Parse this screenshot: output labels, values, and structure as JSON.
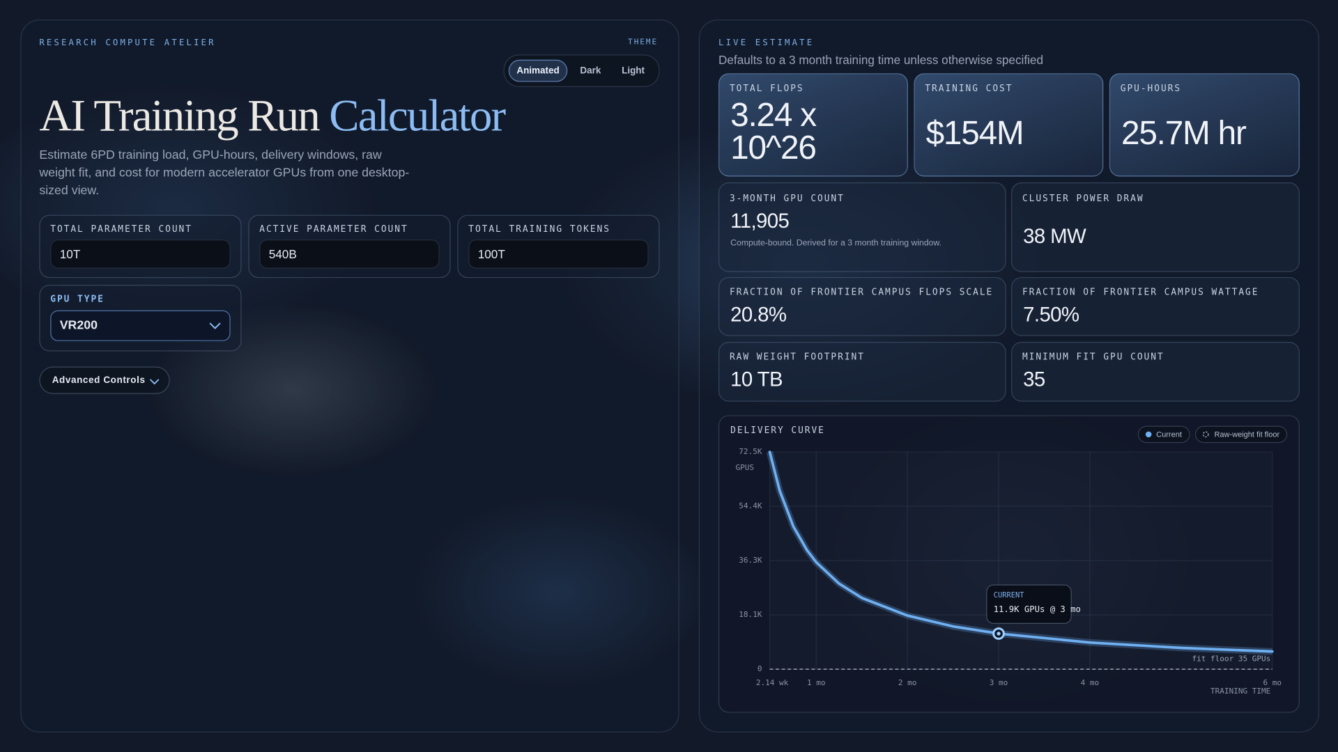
{
  "left": {
    "eyebrow": "RESEARCH COMPUTE ATELIER",
    "theme": {
      "label": "THEME",
      "options": [
        "Animated",
        "Dark",
        "Light"
      ],
      "active": 0
    },
    "title_main": "AI Training Run",
    "title_accent": "Calculator",
    "description": "Estimate 6PD training load, GPU-hours, delivery windows, raw weight fit, and cost for modern accelerator GPUs from one desktop-sized view.",
    "inputs": [
      {
        "label": "TOTAL PARAMETER COUNT",
        "value": "10T"
      },
      {
        "label": "ACTIVE PARAMETER COUNT",
        "value": "540B"
      },
      {
        "label": "TOTAL TRAINING TOKENS",
        "value": "100T"
      }
    ],
    "gpu_type": {
      "label": "GPU TYPE",
      "value": "VR200"
    },
    "advanced": "Advanced Controls"
  },
  "right": {
    "eyebrow": "LIVE ESTIMATE",
    "note": "Defaults to a 3 month training time unless otherwise specified",
    "headline": [
      {
        "label": "TOTAL FLOPS",
        "value": "3.24 x 10^26"
      },
      {
        "label": "TRAINING COST",
        "value": "$154M"
      },
      {
        "label": "GPU-HOURS",
        "value": "25.7M hr"
      }
    ],
    "gpu_count": {
      "label": "3-MONTH GPU COUNT",
      "value": "11,905",
      "note": "Compute-bound. Derived for a 3 month training window."
    },
    "power": {
      "label": "CLUSTER POWER DRAW",
      "value": "38 MW"
    },
    "metrics": [
      {
        "label": "FRACTION OF FRONTIER CAMPUS FLOPS SCALE",
        "value": "20.8%"
      },
      {
        "label": "FRACTION OF FRONTIER CAMPUS WATTAGE",
        "value": "7.50%"
      },
      {
        "label": "RAW WEIGHT FOOTPRINT",
        "value": "10 TB"
      },
      {
        "label": "MINIMUM FIT GPU COUNT",
        "value": "35"
      }
    ]
  },
  "chart_data": {
    "type": "line",
    "title": "DELIVERY CURVE",
    "y_label": "GPUS",
    "x_label": "TRAINING TIME",
    "x": [
      0.49,
      0.6,
      0.75,
      0.9,
      1,
      1.25,
      1.5,
      2,
      2.5,
      3,
      4,
      5,
      6
    ],
    "series": [
      {
        "name": "Current",
        "color": "#6fb0f2",
        "values": [
          72500,
          59500,
          47600,
          39700,
          35700,
          28600,
          23800,
          17900,
          14300,
          11900,
          8930,
          7140,
          5950
        ]
      }
    ],
    "floor": {
      "name": "Raw-weight fit floor",
      "value": 35,
      "label": "fit floor 35 GPUs"
    },
    "current": {
      "x": 3,
      "value": 11905,
      "title": "CURRENT",
      "label": "11.9K GPUs @ 3 mo"
    },
    "xlim": [
      0.49,
      6
    ],
    "ylim": [
      0,
      72500
    ],
    "xticks": [
      {
        "value": 0.49,
        "label": "2.14 wk"
      },
      {
        "value": 1,
        "label": "1 mo"
      },
      {
        "value": 2,
        "label": "2 mo"
      },
      {
        "value": 3,
        "label": "3 mo"
      },
      {
        "value": 4,
        "label": "4 mo"
      },
      {
        "value": 6,
        "label": "6 mo"
      }
    ],
    "yticks": [
      0,
      {
        "value": 18125,
        "label": "18.1K"
      },
      {
        "value": 36250,
        "label": "36.3K"
      },
      {
        "value": 54375,
        "label": "54.4K"
      },
      {
        "value": 72500,
        "label": "72.5K"
      }
    ],
    "grid": true
  }
}
